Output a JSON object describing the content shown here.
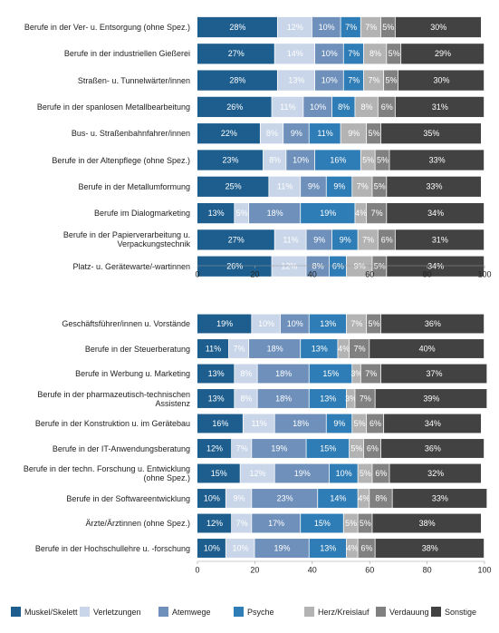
{
  "chart_data": [
    {
      "type": "stacked_barh",
      "categories": [
        "Berufe in der Ver- u. Entsorgung (ohne Spez.)",
        "Berufe in der industriellen Gießerei",
        "Straßen- u. Tunnelwärter/innen",
        "Berufe in der spanlosen Metallbearbeitung",
        "Bus- u. Straßenbahnfahrer/innen",
        "Berufe in der Altenpflege (ohne Spez.)",
        "Berufe in der Metallumformung",
        "Berufe im Dialogmarketing",
        "Berufe in der Papierverarbeitung u. Verpackungstechnik",
        "Platz- u. Gerätewarte/-wartinnen"
      ],
      "series": [
        {
          "name": "Muskel/Skelett",
          "color": "#1d5e8e",
          "values": [
            28,
            27,
            28,
            26,
            22,
            23,
            25,
            13,
            27,
            26
          ],
          "value_labels": [
            "28%",
            "27%",
            "28%",
            "26%",
            "22%",
            "23%",
            "25%",
            "13%",
            "27%",
            "26%"
          ]
        },
        {
          "name": "Verletzungen",
          "color": "#c9d5e8",
          "values": [
            12,
            14,
            13,
            11,
            8,
            8,
            11,
            5,
            11,
            12
          ],
          "value_labels": [
            "12%",
            "14%",
            "13%",
            "11%",
            "8%",
            "8%",
            "11%",
            "5%",
            "11%",
            "12%"
          ]
        },
        {
          "name": "Atemwege",
          "color": "#6e90bb",
          "values": [
            10,
            10,
            10,
            10,
            9,
            10,
            9,
            18,
            9,
            8
          ],
          "value_labels": [
            "10%",
            "10%",
            "10%",
            "10%",
            "9%",
            "10%",
            "9%",
            "18%",
            "9%",
            "8%"
          ]
        },
        {
          "name": "Psyche",
          "color": "#2f7db6",
          "values": [
            7,
            7,
            7,
            8,
            11,
            16,
            9,
            19,
            9,
            6
          ],
          "value_labels": [
            "7%",
            "7%",
            "7%",
            "8%",
            "11%",
            "16%",
            "9%",
            "19%",
            "9%",
            "6%"
          ]
        },
        {
          "name": "Herz/Kreislauf",
          "color": "#b3b3b3",
          "values": [
            7,
            8,
            7,
            8,
            9,
            5,
            7,
            4,
            7,
            9
          ],
          "value_labels": [
            "7%",
            "8%",
            "7%",
            "8%",
            "9%",
            "5%",
            "7%",
            "4%",
            "7%",
            "9%"
          ]
        },
        {
          "name": "Verdauung",
          "color": "#808080",
          "values": [
            5,
            5,
            5,
            6,
            5,
            5,
            5,
            7,
            6,
            5
          ],
          "value_labels": [
            "5%",
            "5%",
            "5%",
            "6%",
            "5%",
            "5%",
            "5%",
            "7%",
            "6%",
            "5%"
          ]
        },
        {
          "name": "Sonstige",
          "color": "#424242",
          "values": [
            30,
            29,
            30,
            31,
            35,
            33,
            33,
            34,
            31,
            34
          ],
          "value_labels": [
            "30%",
            "29%",
            "30%",
            "31%",
            "35%",
            "33%",
            "33%",
            "34%",
            "31%",
            "34%"
          ]
        }
      ],
      "xlim": [
        0,
        100
      ],
      "xticks": [
        0,
        20,
        40,
        60,
        80,
        100
      ]
    },
    {
      "type": "stacked_barh",
      "categories": [
        "Geschäftsführer/innen u. Vorstände",
        "Berufe in der Steuerberatung",
        "Berufe in Werbung u. Marketing",
        "Berufe in der pharmazeutisch-technischen Assistenz",
        "Berufe in der Konstruktion u. im Gerätebau",
        "Berufe in der IT-Anwendungsberatung",
        "Berufe in der techn. Forschung u. Entwicklung (ohne Spez.)",
        "Berufe in der Softwareentwicklung",
        "Ärzte/Ärztinnen (ohne Spez.)",
        "Berufe in der Hochschullehre u. -forschung"
      ],
      "series": [
        {
          "name": "Muskel/Skelett",
          "color": "#1d5e8e",
          "values": [
            19,
            11,
            13,
            13,
            16,
            12,
            15,
            10,
            12,
            10
          ],
          "value_labels": [
            "19%",
            "11%",
            "13%",
            "13%",
            "16%",
            "12%",
            "15%",
            "10%",
            "12%",
            "10%"
          ]
        },
        {
          "name": "Verletzungen",
          "color": "#c9d5e8",
          "values": [
            10,
            7,
            8,
            8,
            11,
            7,
            12,
            9,
            7,
            10
          ],
          "value_labels": [
            "10%",
            "7%",
            "8%",
            "8%",
            "11%",
            "7%",
            "12%",
            "9%",
            "7%",
            "10%"
          ]
        },
        {
          "name": "Atemwege",
          "color": "#6e90bb",
          "values": [
            10,
            18,
            18,
            18,
            18,
            19,
            19,
            23,
            17,
            19
          ],
          "value_labels": [
            "10%",
            "18%",
            "18%",
            "18%",
            "18%",
            "19%",
            "19%",
            "23%",
            "17%",
            "19%"
          ]
        },
        {
          "name": "Psyche",
          "color": "#2f7db6",
          "values": [
            13,
            13,
            15,
            13,
            9,
            15,
            10,
            14,
            15,
            13
          ],
          "value_labels": [
            "13%",
            "13%",
            "15%",
            "13%",
            "9%",
            "15%",
            "10%",
            "14%",
            "15%",
            "13%"
          ]
        },
        {
          "name": "Herz/Kreislauf",
          "color": "#b3b3b3",
          "values": [
            7,
            4,
            3,
            3,
            5,
            5,
            5,
            4,
            5,
            4
          ],
          "value_labels": [
            "7%",
            "4%",
            "3%",
            "3%",
            "5%",
            "5%",
            "5%",
            "4%",
            "5%",
            "4%"
          ]
        },
        {
          "name": "Verdauung",
          "color": "#808080",
          "values": [
            5,
            7,
            7,
            7,
            6,
            6,
            6,
            8,
            5,
            6
          ],
          "value_labels": [
            "5%",
            "7%",
            "7%",
            "7%",
            "6%",
            "6%",
            "6%",
            "8%",
            "5%",
            "6%"
          ]
        },
        {
          "name": "Sonstige",
          "color": "#424242",
          "values": [
            36,
            40,
            37,
            39,
            34,
            36,
            32,
            33,
            38,
            38
          ],
          "value_labels": [
            "36%",
            "40%",
            "37%",
            "39%",
            "34%",
            "36%",
            "32%",
            "33%",
            "38%",
            "38%"
          ]
        }
      ],
      "xlim": [
        0,
        100
      ],
      "xticks": [
        0,
        20,
        40,
        60,
        80,
        100
      ]
    }
  ]
}
